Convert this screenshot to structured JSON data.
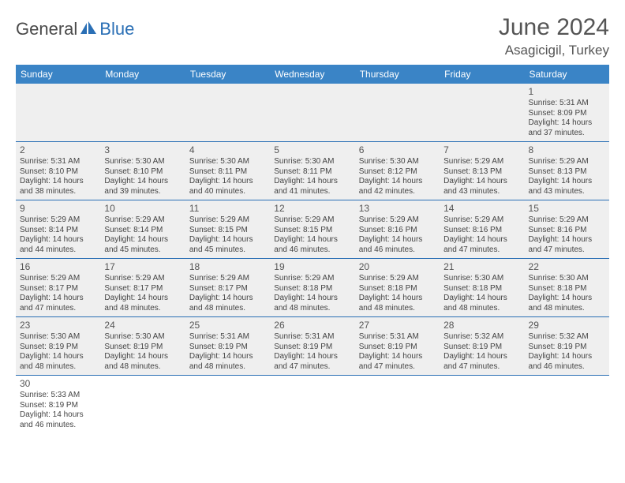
{
  "logo": {
    "part1": "General",
    "part2": "Blue"
  },
  "title": "June 2024",
  "location": "Asagicigil, Turkey",
  "colors": {
    "header_bg": "#3a84c6",
    "header_text": "#ffffff",
    "cell_bg": "#efefef",
    "border": "#2a6fb5",
    "text": "#444444",
    "title_text": "#555555",
    "logo_gray": "#4a4a4a",
    "logo_blue": "#2a6fb5"
  },
  "typography": {
    "title_fontsize": 30,
    "location_fontsize": 17,
    "dayheader_fontsize": 12,
    "cell_fontsize": 10,
    "daynum_fontsize": 12
  },
  "layout": {
    "columns": 7,
    "rows": 6
  },
  "day_headers": [
    "Sunday",
    "Monday",
    "Tuesday",
    "Wednesday",
    "Thursday",
    "Friday",
    "Saturday"
  ],
  "weeks": [
    [
      null,
      null,
      null,
      null,
      null,
      null,
      {
        "n": "1",
        "sunrise": "Sunrise: 5:31 AM",
        "sunset": "Sunset: 8:09 PM",
        "day1": "Daylight: 14 hours",
        "day2": "and 37 minutes."
      }
    ],
    [
      {
        "n": "2",
        "sunrise": "Sunrise: 5:31 AM",
        "sunset": "Sunset: 8:10 PM",
        "day1": "Daylight: 14 hours",
        "day2": "and 38 minutes."
      },
      {
        "n": "3",
        "sunrise": "Sunrise: 5:30 AM",
        "sunset": "Sunset: 8:10 PM",
        "day1": "Daylight: 14 hours",
        "day2": "and 39 minutes."
      },
      {
        "n": "4",
        "sunrise": "Sunrise: 5:30 AM",
        "sunset": "Sunset: 8:11 PM",
        "day1": "Daylight: 14 hours",
        "day2": "and 40 minutes."
      },
      {
        "n": "5",
        "sunrise": "Sunrise: 5:30 AM",
        "sunset": "Sunset: 8:11 PM",
        "day1": "Daylight: 14 hours",
        "day2": "and 41 minutes."
      },
      {
        "n": "6",
        "sunrise": "Sunrise: 5:30 AM",
        "sunset": "Sunset: 8:12 PM",
        "day1": "Daylight: 14 hours",
        "day2": "and 42 minutes."
      },
      {
        "n": "7",
        "sunrise": "Sunrise: 5:29 AM",
        "sunset": "Sunset: 8:13 PM",
        "day1": "Daylight: 14 hours",
        "day2": "and 43 minutes."
      },
      {
        "n": "8",
        "sunrise": "Sunrise: 5:29 AM",
        "sunset": "Sunset: 8:13 PM",
        "day1": "Daylight: 14 hours",
        "day2": "and 43 minutes."
      }
    ],
    [
      {
        "n": "9",
        "sunrise": "Sunrise: 5:29 AM",
        "sunset": "Sunset: 8:14 PM",
        "day1": "Daylight: 14 hours",
        "day2": "and 44 minutes."
      },
      {
        "n": "10",
        "sunrise": "Sunrise: 5:29 AM",
        "sunset": "Sunset: 8:14 PM",
        "day1": "Daylight: 14 hours",
        "day2": "and 45 minutes."
      },
      {
        "n": "11",
        "sunrise": "Sunrise: 5:29 AM",
        "sunset": "Sunset: 8:15 PM",
        "day1": "Daylight: 14 hours",
        "day2": "and 45 minutes."
      },
      {
        "n": "12",
        "sunrise": "Sunrise: 5:29 AM",
        "sunset": "Sunset: 8:15 PM",
        "day1": "Daylight: 14 hours",
        "day2": "and 46 minutes."
      },
      {
        "n": "13",
        "sunrise": "Sunrise: 5:29 AM",
        "sunset": "Sunset: 8:16 PM",
        "day1": "Daylight: 14 hours",
        "day2": "and 46 minutes."
      },
      {
        "n": "14",
        "sunrise": "Sunrise: 5:29 AM",
        "sunset": "Sunset: 8:16 PM",
        "day1": "Daylight: 14 hours",
        "day2": "and 47 minutes."
      },
      {
        "n": "15",
        "sunrise": "Sunrise: 5:29 AM",
        "sunset": "Sunset: 8:16 PM",
        "day1": "Daylight: 14 hours",
        "day2": "and 47 minutes."
      }
    ],
    [
      {
        "n": "16",
        "sunrise": "Sunrise: 5:29 AM",
        "sunset": "Sunset: 8:17 PM",
        "day1": "Daylight: 14 hours",
        "day2": "and 47 minutes."
      },
      {
        "n": "17",
        "sunrise": "Sunrise: 5:29 AM",
        "sunset": "Sunset: 8:17 PM",
        "day1": "Daylight: 14 hours",
        "day2": "and 48 minutes."
      },
      {
        "n": "18",
        "sunrise": "Sunrise: 5:29 AM",
        "sunset": "Sunset: 8:17 PM",
        "day1": "Daylight: 14 hours",
        "day2": "and 48 minutes."
      },
      {
        "n": "19",
        "sunrise": "Sunrise: 5:29 AM",
        "sunset": "Sunset: 8:18 PM",
        "day1": "Daylight: 14 hours",
        "day2": "and 48 minutes."
      },
      {
        "n": "20",
        "sunrise": "Sunrise: 5:29 AM",
        "sunset": "Sunset: 8:18 PM",
        "day1": "Daylight: 14 hours",
        "day2": "and 48 minutes."
      },
      {
        "n": "21",
        "sunrise": "Sunrise: 5:30 AM",
        "sunset": "Sunset: 8:18 PM",
        "day1": "Daylight: 14 hours",
        "day2": "and 48 minutes."
      },
      {
        "n": "22",
        "sunrise": "Sunrise: 5:30 AM",
        "sunset": "Sunset: 8:18 PM",
        "day1": "Daylight: 14 hours",
        "day2": "and 48 minutes."
      }
    ],
    [
      {
        "n": "23",
        "sunrise": "Sunrise: 5:30 AM",
        "sunset": "Sunset: 8:19 PM",
        "day1": "Daylight: 14 hours",
        "day2": "and 48 minutes."
      },
      {
        "n": "24",
        "sunrise": "Sunrise: 5:30 AM",
        "sunset": "Sunset: 8:19 PM",
        "day1": "Daylight: 14 hours",
        "day2": "and 48 minutes."
      },
      {
        "n": "25",
        "sunrise": "Sunrise: 5:31 AM",
        "sunset": "Sunset: 8:19 PM",
        "day1": "Daylight: 14 hours",
        "day2": "and 48 minutes."
      },
      {
        "n": "26",
        "sunrise": "Sunrise: 5:31 AM",
        "sunset": "Sunset: 8:19 PM",
        "day1": "Daylight: 14 hours",
        "day2": "and 47 minutes."
      },
      {
        "n": "27",
        "sunrise": "Sunrise: 5:31 AM",
        "sunset": "Sunset: 8:19 PM",
        "day1": "Daylight: 14 hours",
        "day2": "and 47 minutes."
      },
      {
        "n": "28",
        "sunrise": "Sunrise: 5:32 AM",
        "sunset": "Sunset: 8:19 PM",
        "day1": "Daylight: 14 hours",
        "day2": "and 47 minutes."
      },
      {
        "n": "29",
        "sunrise": "Sunrise: 5:32 AM",
        "sunset": "Sunset: 8:19 PM",
        "day1": "Daylight: 14 hours",
        "day2": "and 46 minutes."
      }
    ],
    [
      {
        "n": "30",
        "sunrise": "Sunrise: 5:33 AM",
        "sunset": "Sunset: 8:19 PM",
        "day1": "Daylight: 14 hours",
        "day2": "and 46 minutes."
      },
      null,
      null,
      null,
      null,
      null,
      null
    ]
  ]
}
